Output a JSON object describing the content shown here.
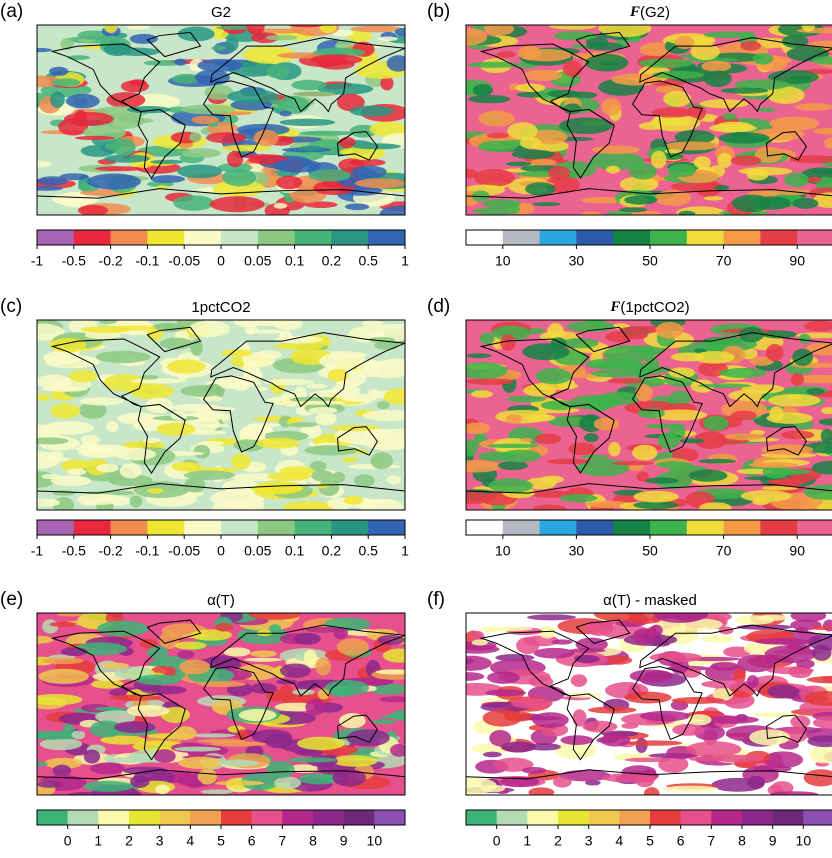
{
  "panels": [
    {
      "label": "(a)",
      "title": "G2",
      "colorbar": {
        "colors": [
          "#a865b5",
          "#e8283c",
          "#f08c50",
          "#f0e632",
          "#fafac8",
          "#c8e6c8",
          "#8cc882",
          "#46b478",
          "#289682",
          "#3264b4"
        ],
        "ticks": [
          -1,
          -0.5,
          -0.2,
          -0.1,
          -0.05,
          0,
          0.05,
          0.1,
          0.2,
          0.5,
          1
        ]
      }
    },
    {
      "label": "(b)",
      "title": "F(G2)",
      "colorbar": {
        "colors": [
          "#ffffff",
          "#b4b9c3",
          "#2aa7e0",
          "#2c5aa8",
          "#158246",
          "#3cb44b",
          "#f0dc3c",
          "#f59b46",
          "#e63c46",
          "#eb6491"
        ],
        "lim": [
          0,
          100
        ],
        "ticks": [
          10,
          30,
          50,
          70,
          90
        ]
      }
    },
    {
      "label": "(c)",
      "title": "1pctCO2",
      "colorbar": {
        "colors": [
          "#a865b5",
          "#e8283c",
          "#f08c50",
          "#f0e632",
          "#fafac8",
          "#c8e6c8",
          "#8cc882",
          "#46b478",
          "#289682",
          "#3264b4"
        ],
        "ticks": [
          -1,
          -0.5,
          -0.2,
          -0.1,
          -0.05,
          0,
          0.05,
          0.1,
          0.2,
          0.5,
          1
        ]
      }
    },
    {
      "label": "(d)",
      "title": "F(1pctCO2)",
      "colorbar": {
        "colors": [
          "#ffffff",
          "#b4b9c3",
          "#2aa7e0",
          "#2c5aa8",
          "#158246",
          "#3cb44b",
          "#f0dc3c",
          "#f59b46",
          "#e63c46",
          "#eb6491"
        ],
        "lim": [
          0,
          100
        ],
        "ticks": [
          10,
          30,
          50,
          70,
          90
        ]
      }
    },
    {
      "label": "(e)",
      "title": "α(T)",
      "colorbar": {
        "colors": [
          "#3cb478",
          "#b4dcb4",
          "#fafaaa",
          "#e6e632",
          "#f0c850",
          "#f0a050",
          "#e63c3c",
          "#e6508c",
          "#b4288c",
          "#8c288c",
          "#6e2878",
          "#8c50b4"
        ],
        "lim": [
          -1,
          11
        ],
        "ticks": [
          0,
          1,
          2,
          3,
          4,
          5,
          6,
          7,
          8,
          9,
          10
        ]
      }
    },
    {
      "label": "(f)",
      "title": "α(T) - masked",
      "colorbar": {
        "colors": [
          "#3cb478",
          "#b4dcb4",
          "#fafaaa",
          "#e6e632",
          "#f0c850",
          "#f0a050",
          "#e63c3c",
          "#e6508c",
          "#b4288c",
          "#8c288c",
          "#6e2878",
          "#8c50b4"
        ],
        "lim": [
          -1,
          11
        ],
        "ticks": [
          0,
          1,
          2,
          3,
          4,
          5,
          6,
          7,
          8,
          9,
          10
        ]
      }
    }
  ]
}
